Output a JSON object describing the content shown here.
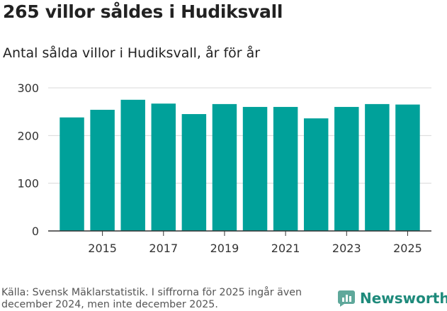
{
  "title": "265 villor såldes i Hudiksvall",
  "subtitle": "Antal sålda villor i Hudiksvall, år för år",
  "source": "Källa: Svensk Mäklarstatistik. I siffrorna för 2025 ingår även december 2024, men inte december 2025.",
  "brand": {
    "name": "Newsworthy",
    "icon": "newsworthy-logo-icon"
  },
  "colors": {
    "bar": "#00a19a",
    "grid": "#d9d9d9",
    "axis": "#333333",
    "text": "#333333"
  },
  "chart_data": {
    "type": "bar",
    "categories": [
      "2014",
      "2015",
      "2016",
      "2017",
      "2018",
      "2019",
      "2020",
      "2021",
      "2022",
      "2023",
      "2024",
      "2025"
    ],
    "values": [
      238,
      254,
      275,
      267,
      245,
      266,
      260,
      260,
      236,
      260,
      266,
      265
    ],
    "x_ticks": [
      "2015",
      "2017",
      "2019",
      "2021",
      "2023",
      "2025"
    ],
    "y_ticks": [
      0,
      100,
      200,
      300
    ],
    "ylim": [
      0,
      300
    ],
    "grid": true,
    "xlabel": "",
    "ylabel": ""
  }
}
